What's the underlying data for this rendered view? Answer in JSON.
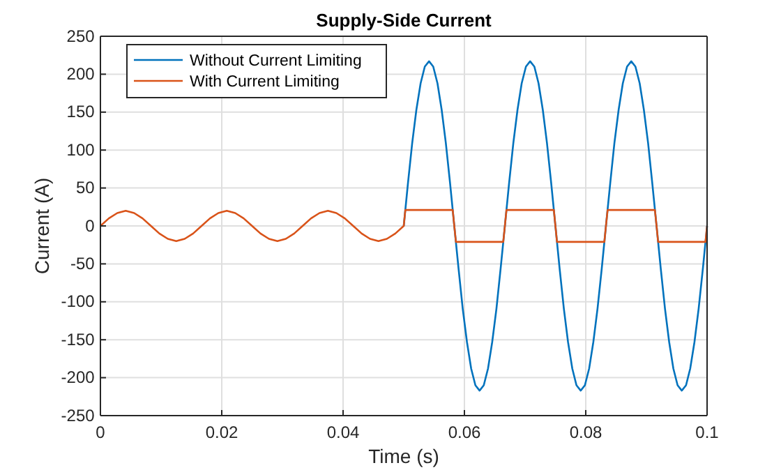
{
  "chart_data": {
    "type": "line",
    "title": "Supply-Side Current",
    "xlabel": "Time (s)",
    "ylabel": "Current (A)",
    "xlim": [
      0,
      0.1
    ],
    "xticks": [
      0,
      0.02,
      0.04,
      0.06,
      0.08,
      0.1
    ],
    "ylim": [
      -250,
      250
    ],
    "yticks": [
      -250,
      -200,
      -150,
      -100,
      -50,
      0,
      50,
      100,
      150,
      200,
      250
    ],
    "grid": true,
    "legend": "top left",
    "line_style": "solid",
    "marker": "none",
    "series": [
      {
        "name": "Without Current Limiting",
        "color": "#0072bd",
        "x": [
          0.05,
          0.05069,
          0.05139,
          0.05208,
          0.05278,
          0.05347,
          0.05417,
          0.05486,
          0.05556,
          0.05625,
          0.05694,
          0.05764,
          0.05833,
          0.05903,
          0.05972,
          0.06042,
          0.06111,
          0.06181,
          0.0625,
          0.06319,
          0.06389,
          0.06458,
          0.06528,
          0.06597,
          0.06667,
          0.06736,
          0.06806,
          0.06875,
          0.06944,
          0.07014,
          0.07083,
          0.07153,
          0.07222,
          0.07292,
          0.07361,
          0.07431,
          0.075,
          0.07569,
          0.07639,
          0.07708,
          0.07778,
          0.07847,
          0.07917,
          0.07986,
          0.08056,
          0.08125,
          0.08194,
          0.08264,
          0.08333,
          0.08403,
          0.08472,
          0.08542,
          0.08611,
          0.08681,
          0.0875,
          0.08819,
          0.08889,
          0.08958,
          0.09028,
          0.09097,
          0.09167,
          0.09236,
          0.09306,
          0.09375,
          0.09444,
          0.09514,
          0.09583,
          0.09653,
          0.09722,
          0.09792,
          0.09861,
          0.09931,
          0.1
        ],
        "values": [
          0,
          56,
          109,
          153,
          188,
          210,
          217,
          210,
          188,
          153,
          109,
          56,
          0,
          -56,
          -109,
          -153,
          -188,
          -210,
          -217,
          -210,
          -188,
          -153,
          -109,
          -56,
          0,
          56,
          109,
          153,
          188,
          210,
          217,
          210,
          188,
          153,
          109,
          56,
          0,
          -56,
          -109,
          -153,
          -188,
          -210,
          -217,
          -210,
          -188,
          -153,
          -109,
          -56,
          0,
          56,
          109,
          153,
          188,
          210,
          217,
          210,
          188,
          153,
          109,
          56,
          0,
          -56,
          -109,
          -153,
          -188,
          -210,
          -217,
          -210,
          -188,
          -153,
          -109,
          -56,
          0
        ]
      },
      {
        "name": "With Current Limiting",
        "color": "#d95319",
        "x": [
          0,
          0.00139,
          0.00278,
          0.00417,
          0.00556,
          0.00694,
          0.00833,
          0.00972,
          0.01111,
          0.0125,
          0.01389,
          0.01528,
          0.01667,
          0.01806,
          0.01944,
          0.02083,
          0.02222,
          0.02361,
          0.025,
          0.02639,
          0.02778,
          0.02917,
          0.03056,
          0.03194,
          0.03333,
          0.03472,
          0.03611,
          0.0375,
          0.03889,
          0.04028,
          0.04167,
          0.04306,
          0.04444,
          0.04583,
          0.04722,
          0.04861,
          0.05,
          0.05026,
          0.05807,
          0.05833,
          0.0586,
          0.0664,
          0.06667,
          0.06693,
          0.07474,
          0.075,
          0.07526,
          0.08307,
          0.08333,
          0.0836,
          0.0914,
          0.09167,
          0.09193,
          0.09974,
          0.1
        ],
        "values": [
          0,
          10,
          17,
          20,
          17,
          10,
          0,
          -10,
          -17,
          -20,
          -17,
          -10,
          0,
          10,
          17,
          20,
          17,
          10,
          0,
          -10,
          -17,
          -20,
          -17,
          -10,
          0,
          10,
          17,
          20,
          17,
          10,
          0,
          -10,
          -17,
          -20,
          -17,
          -10,
          0,
          21,
          21,
          0,
          -21,
          -21,
          0,
          21,
          21,
          0,
          -21,
          -21,
          0,
          21,
          21,
          0,
          -21,
          -21,
          0
        ]
      }
    ]
  }
}
